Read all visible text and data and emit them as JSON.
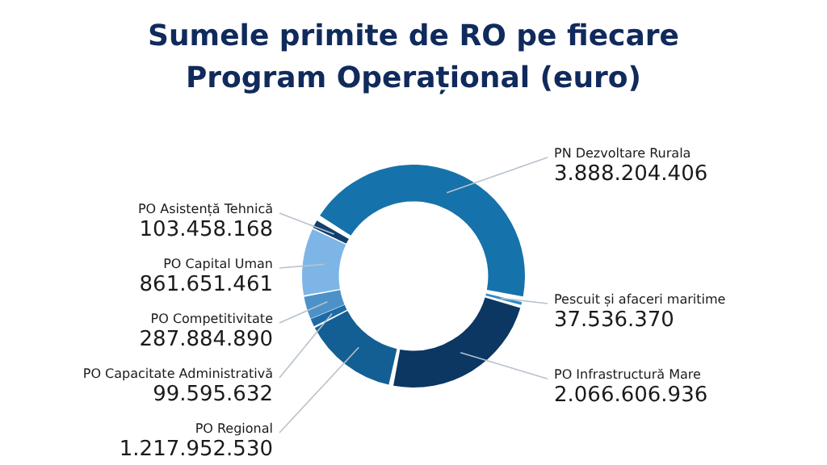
{
  "chart_data": {
    "type": "donut",
    "title": "Sumele primite de RO pe fiecare Program Operațional (euro)",
    "categories": [
      "PN Dezvoltare Rurala",
      "Pescuit și afaceri maritime",
      "PO Infrastructură Mare",
      "PO Regional",
      "PO Capacitate Administrativă",
      "PO Competitivitate",
      "PO Capital Uman",
      "PO Asistență Tehnică"
    ],
    "values": [
      3888204406,
      37536370,
      2066606936,
      1217952530,
      99595632,
      287884890,
      861651461,
      103458168
    ],
    "colors": [
      "#1672aa",
      "#2f8bc4",
      "#0b3762",
      "#135f94",
      "#1d6aa6",
      "#4c92c8",
      "#7db6e6",
      "#123f6e"
    ],
    "value_labels": [
      "3.888.204.406",
      "37.536.370",
      "2.066.606.936",
      "1.217.952.530",
      "99.595.632",
      "287.884.890",
      "861.651.461",
      "103.458.168"
    ],
    "legend": false
  }
}
